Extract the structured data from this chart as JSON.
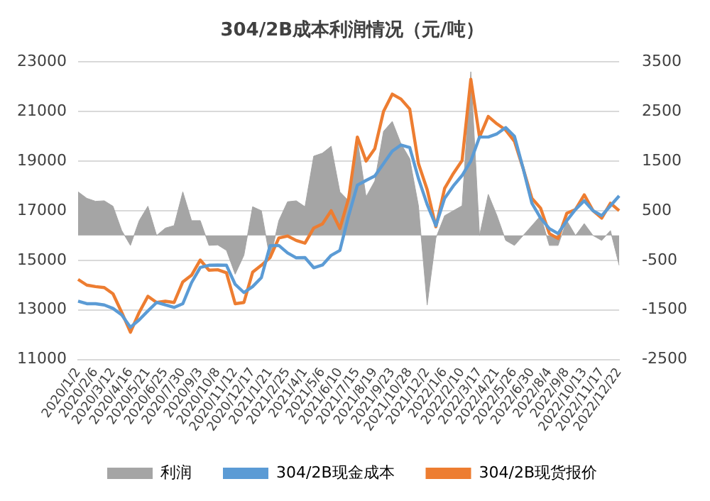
{
  "chart_data": {
    "type": "line",
    "title": "304/2B成本利润情况（元/吨）",
    "categories": [
      "2020/1/2",
      null,
      "2020/2/6",
      null,
      "2020/3/12",
      null,
      "2020/4/16",
      null,
      "2020/5/21",
      null,
      "2020/6/25",
      null,
      "2020/7/30",
      null,
      "2020/9/3",
      null,
      "2020/10/8",
      null,
      "2020/11/12",
      null,
      "2020/12/17",
      null,
      "2021/1/21",
      null,
      "2021/2/25",
      null,
      "2021/4/1",
      null,
      "2021/5/6",
      null,
      "2021/6/10",
      null,
      "2021/7/15",
      null,
      "2021/8/19",
      null,
      "2021/9/23",
      null,
      "2021/10/28",
      null,
      "2021/12/2",
      null,
      "2022/1/6",
      null,
      "2022/2/10",
      null,
      "2022/3/17",
      null,
      "2022/4/21",
      null,
      "2022/5/26",
      null,
      "2022/6/30",
      null,
      "2022/8/4",
      null,
      "2022/9/8",
      null,
      "2022/10/13",
      null,
      "2022/11/17",
      null,
      "2022/12/22"
    ],
    "series": [
      {
        "name": "利润",
        "type": "area",
        "axis": "y2",
        "color": "#a5a5a5",
        "values": [
          880,
          750,
          690,
          700,
          590,
          100,
          -200,
          300,
          590,
          0,
          150,
          200,
          880,
          300,
          300,
          -200,
          -190,
          -300,
          -780,
          -400,
          580,
          500,
          -480,
          300,
          680,
          700,
          580,
          1600,
          1660,
          1800,
          880,
          700,
          1940,
          780,
          1100,
          2100,
          2300,
          1850,
          1550,
          600,
          -1400,
          -50,
          400,
          500,
          600,
          3300,
          0,
          830,
          400,
          -100,
          -200,
          0,
          200,
          400,
          -200,
          -200,
          300,
          0,
          240,
          0,
          -100,
          100,
          -600
        ]
      },
      {
        "name": "304/2B现金成本",
        "color": "#5b9bd5",
        "values": [
          13350,
          13250,
          13250,
          13200,
          13060,
          12800,
          12300,
          12600,
          12960,
          13300,
          13200,
          13100,
          13250,
          14100,
          14710,
          14800,
          14810,
          14800,
          14030,
          13700,
          13940,
          14300,
          15590,
          15600,
          15300,
          15100,
          15110,
          14700,
          14810,
          15200,
          15400,
          16800,
          18030,
          18220,
          18400,
          18900,
          19400,
          19650,
          19550,
          18300,
          17250,
          16400,
          17500,
          18000,
          18420,
          19000,
          19970,
          19970,
          20100,
          20350,
          20000,
          18700,
          17300,
          16700,
          16280,
          16080,
          16600,
          17050,
          17400,
          17000,
          16800,
          17200,
          17600
        ]
      },
      {
        "name": "304/2B现货报价",
        "color": "#ed7d31",
        "values": [
          14230,
          14000,
          13940,
          13900,
          13650,
          12900,
          12100,
          12900,
          13550,
          13300,
          13350,
          13300,
          14130,
          14400,
          15010,
          14600,
          14620,
          14500,
          13250,
          13300,
          14520,
          14800,
          15110,
          15900,
          15980,
          15800,
          15690,
          16300,
          16470,
          17000,
          16280,
          17500,
          19970,
          19000,
          19500,
          21000,
          21700,
          21500,
          21100,
          18900,
          17850,
          16350,
          17900,
          18500,
          19020,
          22300,
          19970,
          20800,
          20500,
          20250,
          19800,
          18700,
          17500,
          17100,
          16080,
          15880,
          16900,
          17050,
          17640,
          17000,
          16700,
          17300,
          17000
        ]
      }
    ],
    "ylim": [
      11000,
      23000
    ],
    "yticks": [
      11000,
      13000,
      15000,
      17000,
      19000,
      21000,
      23000
    ],
    "y2lim": [
      -2500,
      3500
    ],
    "y2ticks": [
      -2500,
      -1500,
      -500,
      500,
      1500,
      2500,
      3500
    ],
    "grid": "y",
    "legend": "bottom",
    "marker": "none"
  }
}
